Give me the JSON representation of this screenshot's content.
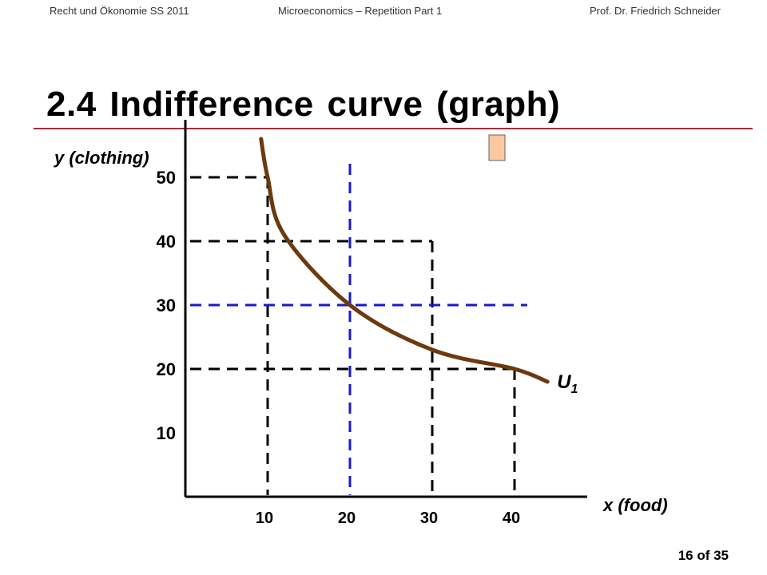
{
  "header": {
    "left": "Recht und Ökonomie SS 2011",
    "center": "Microeconomics – Repetition Part 1",
    "right": "Prof. Dr. Friedrich Schneider"
  },
  "slide": {
    "title": "2.4  Indifference curve (graph)",
    "page": "16 of 35"
  },
  "colors": {
    "curve": "#6b3a0e",
    "guide_black": "#000000",
    "guide_blue": "#1a1acc",
    "rule": "#a0303a",
    "marker": "#fbc8a0"
  },
  "chart_data": {
    "type": "line",
    "title": "",
    "xlabel": "x (food)",
    "ylabel": "y (clothing)",
    "xlim": [
      0,
      48
    ],
    "ylim": [
      0,
      60
    ],
    "x_ticks": [
      10,
      20,
      30,
      40
    ],
    "y_ticks": [
      10,
      20,
      30,
      40,
      50
    ],
    "series": [
      {
        "name": "U1",
        "points": [
          [
            9.2,
            56
          ],
          [
            10,
            50
          ],
          [
            12,
            41
          ],
          [
            20,
            30
          ],
          [
            30,
            23
          ],
          [
            40,
            20
          ],
          [
            44,
            18
          ]
        ]
      }
    ],
    "guides": [
      {
        "x": 10,
        "y": 50,
        "color": "black"
      },
      {
        "x": 30,
        "y": 40,
        "color": "black"
      },
      {
        "x": 40,
        "y": 20,
        "color": "black"
      },
      {
        "x": 20,
        "y": 30,
        "color": "blue"
      }
    ],
    "curve_label": {
      "letter": "U",
      "subscript": "1"
    }
  }
}
